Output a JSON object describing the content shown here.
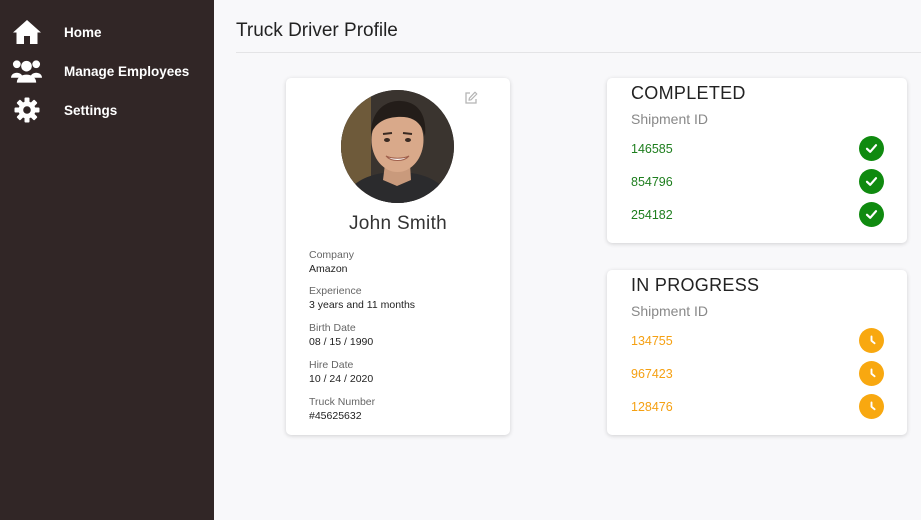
{
  "sidebar": {
    "items": [
      {
        "label": "Home",
        "icon": "home-icon"
      },
      {
        "label": "Manage Employees",
        "icon": "users-icon"
      },
      {
        "label": "Settings",
        "icon": "gear-icon"
      }
    ]
  },
  "main": {
    "title": "Truck Driver Profile"
  },
  "profile": {
    "name": "John Smith",
    "fields": [
      {
        "label": "Company",
        "value": "Amazon"
      },
      {
        "label": "Experience",
        "value": "3 years and 11 months"
      },
      {
        "label": "Birth Date",
        "value": "08 / 15 / 1990"
      },
      {
        "label": "Hire Date",
        "value": "10 / 24 / 2020"
      },
      {
        "label": "Truck Number",
        "value": "#45625632"
      }
    ]
  },
  "completed": {
    "title": "COMPLETED",
    "subtitle": "Shipment ID",
    "color": "#1e7e1e",
    "badge_color": "#0f8a0f",
    "icon": "check-icon",
    "ids": [
      "146585",
      "854796",
      "254182"
    ]
  },
  "in_progress": {
    "title": "IN PROGRESS",
    "subtitle": "Shipment ID",
    "color": "#f5a012",
    "badge_color": "#f8a810",
    "icon": "clock-icon",
    "ids": [
      "134755",
      "967423",
      "128476"
    ]
  }
}
